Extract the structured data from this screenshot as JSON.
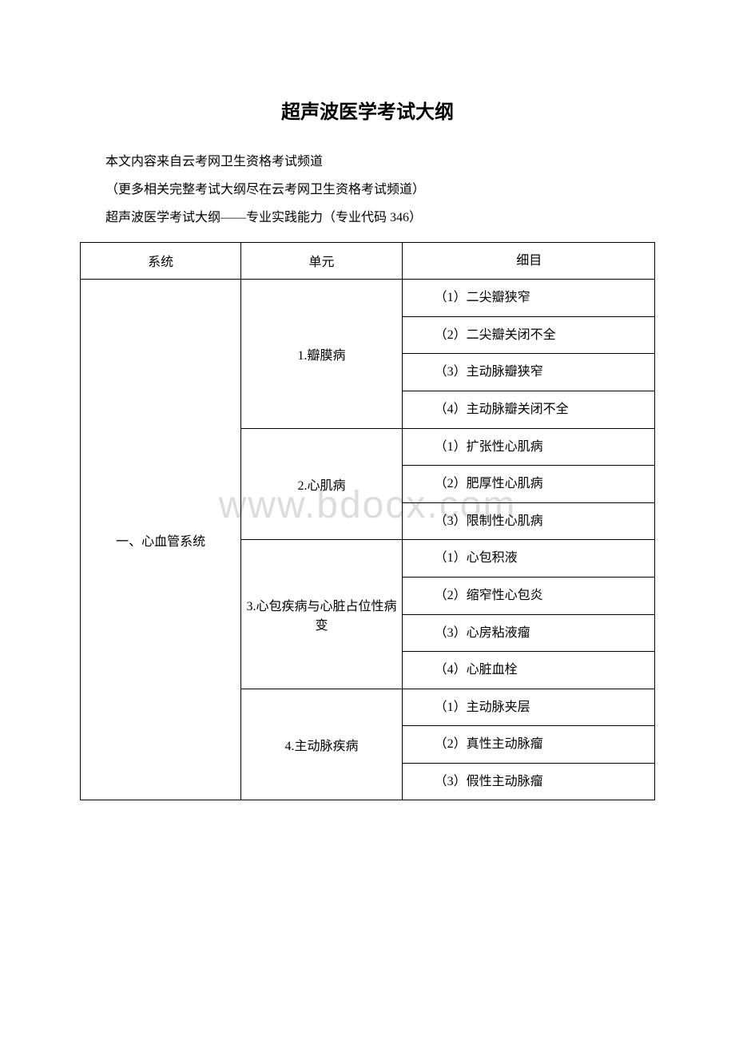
{
  "watermark": "www.bdocx.com",
  "title": "超声波医学考试大纲",
  "intro": [
    "本文内容来自云考网卫生资格考试频道",
    "（更多相关完整考试大纲尽在云考网卫生资格考试频道）",
    "超声波医学考试大纲——专业实践能力（专业代码 346）"
  ],
  "headers": {
    "system": "系统",
    "unit": "单元",
    "detail": "细目"
  },
  "systemName": "一、心血管系统",
  "units": [
    {
      "name": "1.瓣膜病",
      "details": [
        "（1）二尖瓣狭窄",
        "（2）二尖瓣关闭不全",
        "（3）主动脉瓣狭窄",
        "（4）主动脉瓣关闭不全"
      ]
    },
    {
      "name": "2.心肌病",
      "details": [
        "（1）扩张性心肌病",
        "（2）肥厚性心肌病",
        "（3）限制性心肌病"
      ]
    },
    {
      "name": "3.心包疾病与心脏占位性病变",
      "details": [
        "（1）心包积液",
        "（2）缩窄性心包炎",
        "（3）心房粘液瘤",
        "（4）心脏血栓"
      ]
    },
    {
      "name": "4.主动脉疾病",
      "details": [
        "（1）主动脉夹层",
        "（2）真性主动脉瘤",
        "（3）假性主动脉瘤"
      ]
    }
  ],
  "colors": {
    "text": "#000000",
    "background": "#ffffff",
    "border": "#000000",
    "watermark": "#dcdcdc"
  },
  "fonts": {
    "body": "SimSun",
    "titleSize": 24,
    "bodySize": 16,
    "watermarkSize": 48
  }
}
